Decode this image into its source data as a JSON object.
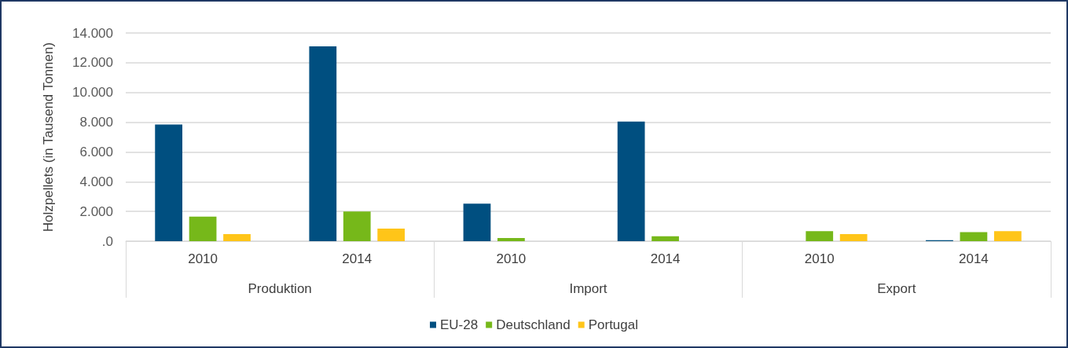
{
  "chart_data": {
    "type": "bar",
    "ylabel": "Holzpellets (in Tausend Tonnen)",
    "categories": [
      "2010",
      "2014",
      "2010",
      "2014",
      "2010",
      "2014"
    ],
    "annotations": [
      "Produktion",
      "Import",
      "Export"
    ],
    "series": [
      {
        "name": "EU-28",
        "color": "#004f80",
        "values": [
          7850,
          13100,
          2520,
          8050,
          null,
          70
        ]
      },
      {
        "name": "Deutschland",
        "color": "#76b81a",
        "values": [
          1650,
          2000,
          210,
          330,
          680,
          610
        ]
      },
      {
        "name": "Portugal",
        "color": "#ffc519",
        "values": [
          470,
          850,
          null,
          null,
          470,
          680
        ]
      }
    ],
    "ylim": [
      0,
      14000
    ],
    "yticks": [
      {
        "value": 0,
        "label": ".0"
      },
      {
        "value": 2000,
        "label": "2.000"
      },
      {
        "value": 4000,
        "label": "4.000"
      },
      {
        "value": 6000,
        "label": "6.000"
      },
      {
        "value": 8000,
        "label": "8.000"
      },
      {
        "value": 10000,
        "label": "10.000"
      },
      {
        "value": 12000,
        "label": "12.000"
      },
      {
        "value": 14000,
        "label": "14.000"
      }
    ],
    "grid": "y",
    "legend": "bottom"
  }
}
